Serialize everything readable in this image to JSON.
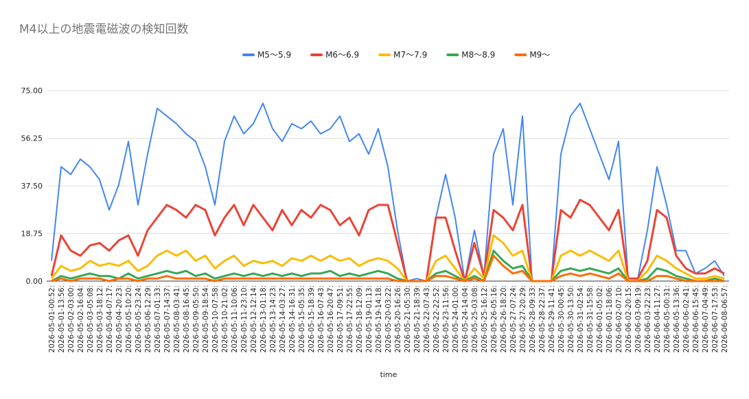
{
  "chart_data": {
    "type": "line",
    "title": "M4以上の地震電磁波の検知回数",
    "x_label": "time",
    "categories": [
      "2026-05-01-00:52:",
      "2026-05-01-13:56:",
      "2026-05-02-03:00:",
      "2026-05-02-16:04:",
      "2026-05-03-05:08:",
      "2026-05-03-18:12:",
      "2026-05-04-07:17:",
      "2026-05-04-20:23:",
      "2026-05-05-10:20:",
      "2026-05-05-23:24:",
      "2026-05-06-12:29:",
      "2026-05-07-01:33:",
      "2026-05-07-14:37:",
      "2026-05-08-03:41:",
      "2026-05-08-16:45:",
      "2026-05-09-05:50:",
      "2026-05-09-18:54:",
      "2026-05-10-07:58:",
      "2026-05-10-21:02:",
      "2026-05-11-10:06:",
      "2026-05-11-23:10:",
      "2026-05-12-12:14:",
      "2026-05-13-01:18:",
      "2026-05-13-14:23:",
      "2026-05-14-03:27:",
      "2026-05-14-16:31:",
      "2026-05-15-05:35:",
      "2026-05-15-18:39:",
      "2026-05-16-07:43:",
      "2026-05-16-20:47:",
      "2026-05-17-09:51:",
      "2026-05-17-22:55:",
      "2026-05-18-12:09:",
      "2026-05-19-01:13:",
      "2026-05-19-14:18:",
      "2026-05-20-03:22:",
      "2026-05-20-16:26:",
      "2026-05-21-05:30:",
      "2026-05-21-18:39:",
      "2026-05-22-07:43:",
      "2026-05-22-22:52:",
      "2026-05-23-11:56:",
      "2026-05-24-01:00:",
      "2026-05-24-14:04:",
      "2026-05-25-03:08:",
      "2026-05-25-16:12:",
      "2026-05-26-05:16:",
      "2026-05-26-18:20:",
      "2026-05-27-07:24:",
      "2026-05-27-20:29:",
      "2026-05-28-09:33:",
      "2026-05-28-22:37:",
      "2026-05-29-11:41:",
      "2026-05-30-00:45:",
      "2026-05-30-13:50:",
      "2026-05-31-02:54:",
      "2026-05-31-15:58:",
      "2026-06-01-05:02:",
      "2026-06-01-18:06:",
      "2026-06-02-07:10:",
      "2026-06-02-20:15:",
      "2026-06-03-09:19:",
      "2026-06-03-22:23:",
      "2026-06-04-11:27:",
      "2026-06-05-00:31:",
      "2026-06-05-13:36:",
      "2026-06-06-02:41:",
      "2026-06-06-15:45:",
      "2026-06-07-04:49:",
      "2026-06-07-17:53:",
      "2026-06-08-06:57:"
    ],
    "series": [
      {
        "name": "M5〜5.9",
        "color": "#4285f4",
        "values": [
          8,
          45,
          42,
          48,
          45,
          40,
          28,
          38,
          55,
          30,
          50,
          68,
          65,
          62,
          58,
          55,
          45,
          30,
          55,
          65,
          58,
          62,
          70,
          60,
          55,
          62,
          60,
          63,
          58,
          60,
          65,
          55,
          58,
          50,
          60,
          45,
          20,
          0,
          1,
          0,
          25,
          42,
          25,
          0,
          20,
          2,
          50,
          60,
          30,
          65,
          0,
          0,
          0,
          50,
          65,
          70,
          60,
          50,
          40,
          55,
          1,
          1,
          20,
          45,
          30,
          12,
          12,
          3,
          5,
          8,
          2
        ]
      },
      {
        "name": "M6〜6.9",
        "color": "#ea4335",
        "values": [
          2,
          18,
          12,
          10,
          14,
          15,
          12,
          16,
          18,
          10,
          20,
          25,
          30,
          28,
          25,
          30,
          28,
          18,
          25,
          30,
          22,
          30,
          25,
          20,
          28,
          22,
          28,
          25,
          30,
          28,
          22,
          25,
          18,
          28,
          30,
          30,
          15,
          0,
          0,
          0,
          25,
          25,
          12,
          0,
          15,
          2,
          28,
          25,
          20,
          30,
          0,
          0,
          0,
          28,
          25,
          32,
          30,
          25,
          20,
          28,
          1,
          1,
          8,
          28,
          25,
          10,
          5,
          3,
          3,
          5,
          3
        ]
      },
      {
        "name": "M7〜7.9",
        "color": "#fbbc04",
        "values": [
          1,
          6,
          4,
          5,
          8,
          6,
          7,
          6,
          8,
          4,
          6,
          10,
          12,
          10,
          12,
          8,
          10,
          5,
          8,
          10,
          6,
          8,
          7,
          8,
          6,
          9,
          8,
          10,
          8,
          10,
          8,
          9,
          6,
          8,
          9,
          8,
          5,
          0,
          0,
          0,
          8,
          10,
          5,
          0,
          5,
          1,
          18,
          15,
          10,
          12,
          0,
          0,
          0,
          10,
          12,
          10,
          12,
          10,
          8,
          12,
          0,
          0,
          4,
          10,
          8,
          5,
          3,
          1,
          1,
          2,
          1
        ]
      },
      {
        "name": "M8〜8.9",
        "color": "#34a853",
        "values": [
          0,
          2,
          1,
          2,
          3,
          2,
          2,
          1,
          3,
          1,
          2,
          3,
          4,
          3,
          4,
          2,
          3,
          1,
          2,
          3,
          2,
          3,
          2,
          3,
          2,
          3,
          2,
          3,
          3,
          4,
          2,
          3,
          2,
          3,
          4,
          3,
          1,
          0,
          0,
          0,
          3,
          4,
          2,
          0,
          2,
          0,
          12,
          8,
          5,
          6,
          0,
          0,
          0,
          4,
          5,
          4,
          5,
          4,
          3,
          5,
          0,
          0,
          1,
          5,
          4,
          2,
          1,
          0,
          0,
          1,
          0
        ]
      },
      {
        "name": "M9〜",
        "color": "#ff6d01",
        "values": [
          0,
          1,
          0,
          1,
          1,
          1,
          0,
          1,
          1,
          0,
          1,
          1,
          2,
          1,
          1,
          1,
          1,
          0,
          1,
          1,
          1,
          1,
          1,
          1,
          1,
          1,
          1,
          1,
          1,
          1,
          1,
          1,
          1,
          1,
          1,
          1,
          0,
          0,
          0,
          0,
          2,
          2,
          1,
          0,
          1,
          0,
          10,
          6,
          3,
          4,
          0,
          0,
          0,
          2,
          3,
          2,
          3,
          2,
          1,
          3,
          0,
          0,
          0,
          2,
          2,
          1,
          0,
          0,
          0,
          0,
          0
        ]
      }
    ],
    "ylim": [
      0,
      81
    ],
    "yticks": [
      {
        "value": 0,
        "label": "0.00"
      },
      18.75,
      {
        "value": 37.5,
        "label": "37.50"
      },
      56.25,
      {
        "value": 75,
        "label": "75.00"
      }
    ],
    "grid": true,
    "legend": "top"
  }
}
